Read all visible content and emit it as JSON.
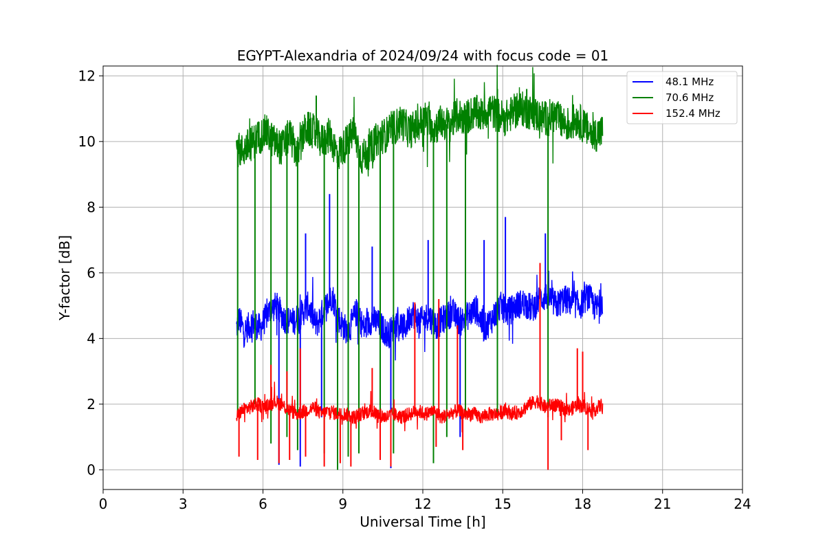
{
  "chart_data": {
    "type": "line",
    "title": "EGYPT-Alexandria of 2024/09/24 with focus code = 01",
    "xlabel": "Universal Time [h]",
    "ylabel": "Y-factor [dB]",
    "xlim": [
      0,
      24
    ],
    "ylim": [
      -0.6,
      12.3
    ],
    "xticks": [
      0,
      3,
      6,
      9,
      12,
      15,
      18,
      21,
      24
    ],
    "yticks": [
      0,
      2,
      4,
      6,
      8,
      10,
      12
    ],
    "grid": true,
    "legend_position": "top-right",
    "series": [
      {
        "name": "48.1 MHz",
        "color": "#0000ff",
        "x": [
          5.0,
          5.1,
          5.3,
          5.6,
          5.9,
          6.2,
          6.5,
          6.8,
          7.1,
          7.4,
          7.7,
          8.0,
          8.3,
          8.6,
          8.9,
          9.2,
          9.5,
          9.8,
          10.1,
          10.4,
          10.7,
          11.0,
          11.3,
          11.6,
          11.9,
          12.2,
          12.5,
          12.8,
          13.1,
          13.4,
          13.7,
          14.0,
          14.3,
          14.6,
          14.9,
          15.2,
          15.5,
          15.8,
          16.1,
          16.4,
          16.7,
          17.0,
          17.3,
          17.6,
          17.9,
          18.2,
          18.5,
          18.75
        ],
        "values": [
          4.3,
          4.6,
          4.2,
          4.5,
          4.3,
          4.8,
          5.0,
          4.6,
          4.5,
          4.7,
          5.0,
          4.4,
          4.9,
          5.3,
          4.5,
          4.2,
          4.8,
          4.3,
          4.6,
          4.4,
          4.1,
          4.5,
          4.3,
          4.8,
          4.5,
          4.7,
          4.4,
          4.6,
          4.8,
          4.5,
          4.7,
          4.9,
          4.3,
          4.6,
          5.0,
          4.8,
          5.0,
          5.1,
          4.9,
          5.2,
          5.3,
          5.0,
          5.2,
          5.1,
          5.0,
          5.3,
          4.9,
          5.2
        ],
        "dips": [
          [
            6.6,
            0.15
          ],
          [
            7.4,
            0.1
          ],
          [
            8.2,
            1.6
          ],
          [
            10.8,
            0.05
          ],
          [
            12.4,
            1.0
          ],
          [
            13.4,
            1.0
          ]
        ],
        "spikes": [
          [
            7.6,
            7.2
          ],
          [
            8.5,
            8.4
          ],
          [
            10.1,
            6.8
          ],
          [
            12.2,
            7.0
          ],
          [
            14.3,
            7.0
          ],
          [
            15.1,
            7.7
          ],
          [
            16.6,
            7.2
          ]
        ]
      },
      {
        "name": "70.6 MHz",
        "color": "#008000",
        "x": [
          5.0,
          5.2,
          5.5,
          5.8,
          6.1,
          6.4,
          6.7,
          7.0,
          7.3,
          7.6,
          7.9,
          8.2,
          8.5,
          8.8,
          9.1,
          9.4,
          9.7,
          10.0,
          10.3,
          10.6,
          10.9,
          11.2,
          11.5,
          11.8,
          12.1,
          12.4,
          12.7,
          13.0,
          13.3,
          13.6,
          13.9,
          14.2,
          14.5,
          14.8,
          15.1,
          15.4,
          15.7,
          16.0,
          16.3,
          16.6,
          16.9,
          17.2,
          17.5,
          17.8,
          18.1,
          18.4,
          18.75
        ],
        "values": [
          9.8,
          9.7,
          9.9,
          10.1,
          10.3,
          10.0,
          9.8,
          10.2,
          9.6,
          10.4,
          10.3,
          10.0,
          10.2,
          9.6,
          9.9,
          10.3,
          9.5,
          9.7,
          10.1,
          10.2,
          10.4,
          10.6,
          10.3,
          10.5,
          10.7,
          10.4,
          10.6,
          10.5,
          10.8,
          10.7,
          10.9,
          10.8,
          11.0,
          10.8,
          10.7,
          10.9,
          11.0,
          10.9,
          10.8,
          10.7,
          10.8,
          10.6,
          10.5,
          10.7,
          10.4,
          10.2,
          10.3
        ],
        "dips": [
          [
            5.05,
            1.8
          ],
          [
            5.7,
            2.0
          ],
          [
            6.3,
            0.8
          ],
          [
            6.9,
            1.0
          ],
          [
            7.3,
            0.6
          ],
          [
            8.3,
            0.5
          ],
          [
            8.8,
            0.0
          ],
          [
            9.2,
            0.4
          ],
          [
            9.6,
            0.5
          ],
          [
            10.4,
            0.7
          ],
          [
            10.9,
            0.5
          ],
          [
            12.4,
            0.2
          ],
          [
            12.9,
            1.0
          ],
          [
            13.6,
            1.6
          ],
          [
            14.8,
            1.7
          ],
          [
            16.7,
            1.6
          ]
        ],
        "spikes": [
          [
            8.0,
            11.4
          ],
          [
            14.8,
            11.6
          ],
          [
            15.9,
            11.6
          ]
        ]
      },
      {
        "name": "152.4 MHz",
        "color": "#ff0000",
        "x": [
          5.0,
          5.2,
          5.5,
          5.8,
          6.1,
          6.4,
          6.7,
          7.0,
          7.3,
          7.6,
          7.9,
          8.2,
          8.5,
          8.8,
          9.1,
          9.4,
          9.7,
          10.0,
          10.3,
          10.6,
          10.9,
          11.2,
          11.5,
          11.8,
          12.1,
          12.4,
          12.7,
          13.0,
          13.3,
          13.6,
          13.9,
          14.2,
          14.5,
          14.8,
          15.1,
          15.4,
          15.7,
          16.0,
          16.3,
          16.6,
          16.9,
          17.2,
          17.5,
          17.8,
          18.1,
          18.4,
          18.75
        ],
        "values": [
          1.6,
          1.8,
          1.9,
          2.0,
          1.9,
          2.1,
          2.0,
          1.8,
          1.7,
          1.8,
          1.9,
          1.7,
          1.8,
          1.7,
          1.7,
          1.6,
          1.7,
          1.8,
          1.7,
          1.6,
          1.7,
          1.6,
          1.7,
          1.8,
          1.7,
          1.8,
          1.6,
          1.7,
          1.8,
          1.7,
          1.7,
          1.6,
          1.7,
          1.7,
          1.8,
          1.7,
          1.8,
          2.0,
          2.1,
          1.9,
          2.0,
          1.9,
          1.8,
          2.0,
          1.9,
          1.8,
          2.0
        ],
        "dips": [
          [
            5.1,
            0.4
          ],
          [
            5.8,
            0.3
          ],
          [
            6.6,
            0.2
          ],
          [
            7.0,
            0.3
          ],
          [
            7.6,
            0.4
          ],
          [
            8.3,
            0.1
          ],
          [
            8.9,
            0.2
          ],
          [
            9.3,
            0.1
          ],
          [
            10.4,
            0.3
          ],
          [
            10.8,
            0.1
          ],
          [
            12.5,
            0.7
          ],
          [
            13.5,
            0.6
          ],
          [
            16.7,
            0.0
          ],
          [
            17.2,
            0.9
          ],
          [
            18.2,
            0.6
          ]
        ],
        "spikes": [
          [
            6.3,
            3.2
          ],
          [
            6.9,
            3.0
          ],
          [
            7.4,
            3.7
          ],
          [
            10.1,
            3.1
          ],
          [
            11.7,
            5.1
          ],
          [
            12.6,
            5.2
          ],
          [
            13.3,
            4.4
          ],
          [
            16.4,
            6.3
          ],
          [
            17.8,
            3.7
          ],
          [
            18.0,
            3.6
          ]
        ]
      }
    ]
  }
}
